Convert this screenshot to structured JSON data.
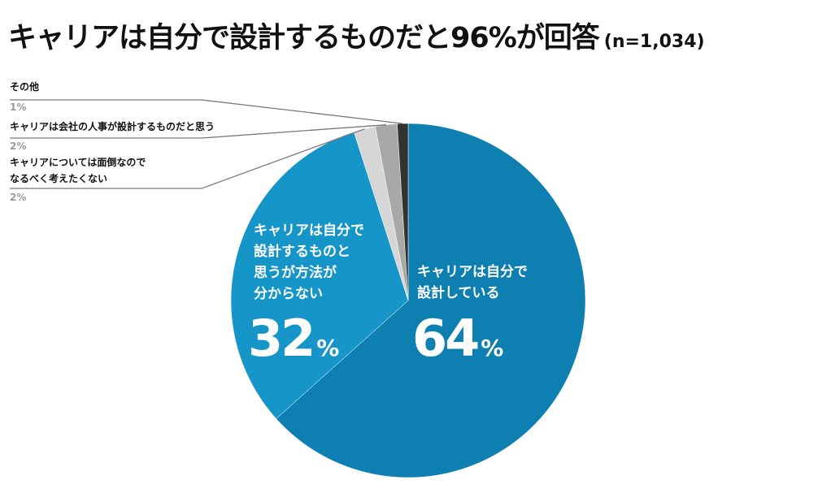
{
  "title": "キャリアは自分で設計するものだと96%が回答",
  "sample": "(n=1,034)",
  "colors": {
    "slice_0": "#0e7fb1",
    "slice_1": "#1595c8",
    "slice_2": "#d6d6d6",
    "slice_3": "#a8a8a8",
    "slice_4": "#333333",
    "leader": "#7a7a7a",
    "pct_gray": "#9a9a9a"
  },
  "chart_data": {
    "type": "pie",
    "title": "キャリアは自分で設計するものだと96%が回答",
    "slices": [
      {
        "label": "キャリアは自分で設計している",
        "label_lines": [
          "キャリアは自分で",
          "設計している"
        ],
        "value": 64,
        "value_text": "64",
        "unit": "%"
      },
      {
        "label": "キャリアは自分で設計するものと思うが方法が分からない",
        "label_lines": [
          "キャリアは自分で",
          "設計するものと",
          "思うが方法が",
          "分からない"
        ],
        "value": 32,
        "value_text": "32",
        "unit": "%"
      },
      {
        "label": "キャリアについては面倒なのでなるべく考えたくない",
        "label_lines": [
          "キャリアについては面倒なので",
          "なるべく考えたくない"
        ],
        "value": 2,
        "value_text": "2%"
      },
      {
        "label": "キャリアは会社の人事が設計するものだと思う",
        "label_lines": [
          "キャリアは会社の人事が設計するものだと思う"
        ],
        "value": 2,
        "value_text": "2%"
      },
      {
        "label": "その他",
        "label_lines": [
          "その他"
        ],
        "value": 1,
        "value_text": "1%"
      }
    ]
  }
}
